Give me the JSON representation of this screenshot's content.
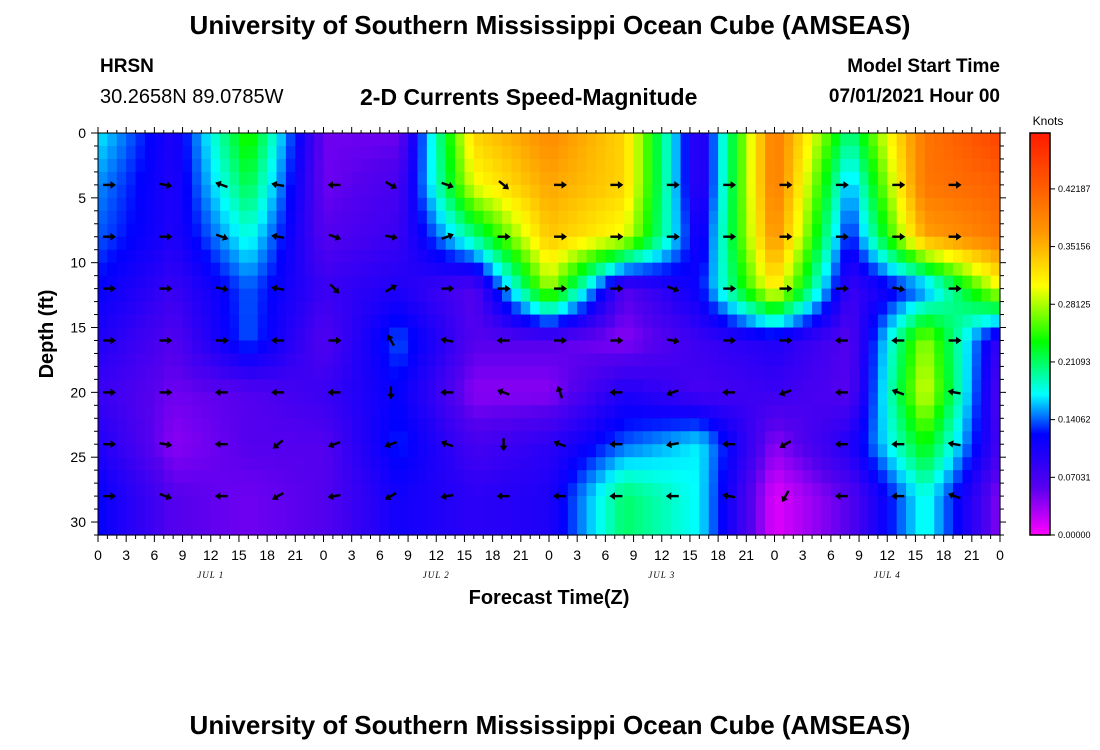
{
  "header": {
    "title": "University of Southern Mississippi Ocean Cube (AMSEAS)",
    "station": "HRSN",
    "coords": "30.2658N  89.0785W",
    "chart_title": "2-D Currents Speed-Magnitude",
    "model_start_label": "Model Start Time",
    "model_start_value": "07/01/2021 Hour 00"
  },
  "footer": {
    "title": "University of Southern Mississippi Ocean Cube (AMSEAS)"
  },
  "chart_data": {
    "type": "heatmap",
    "title": "2-D Currents Speed-Magnitude",
    "xlabel": "Forecast Time(Z)",
    "ylabel": "Depth (ft)",
    "colorbar_label": "Knots",
    "colorbar_ticks": [
      "0.42187",
      "0.35156",
      "0.28125",
      "0.21093",
      "0.14062",
      "0.07031",
      "0.00000"
    ],
    "colorbar_values": [
      0.42187,
      0.35156,
      0.28125,
      0.21093,
      0.14062,
      0.07031,
      0.0
    ],
    "vmin": 0.0,
    "vmax": 0.49,
    "x_tick_labels": [
      "0",
      "3",
      "6",
      "9",
      "12",
      "15",
      "18",
      "21",
      "0",
      "3",
      "6",
      "9",
      "12",
      "15",
      "18",
      "21",
      "0",
      "3",
      "6",
      "9",
      "12",
      "15",
      "18",
      "21",
      "0",
      "3",
      "6",
      "9",
      "12",
      "15",
      "18",
      "21",
      "0"
    ],
    "day_labels": [
      "JUL 1",
      "JUL 2",
      "JUL 3",
      "JUL 4"
    ],
    "y_ticks": [
      0,
      5,
      10,
      15,
      20,
      25,
      30
    ],
    "ylim": [
      0,
      31
    ],
    "x_range_hours": [
      0,
      96
    ],
    "depths_ft": [
      0,
      4,
      8,
      12,
      16,
      20,
      24,
      28
    ],
    "hours": [
      0,
      8,
      16,
      24,
      32,
      40,
      48,
      56,
      64,
      72,
      80,
      88,
      96
    ],
    "speed_knots": [
      [
        0.17,
        0.1,
        0.25,
        0.05,
        0.05,
        0.33,
        0.38,
        0.33,
        0.08,
        0.4,
        0.2,
        0.4,
        0.45
      ],
      [
        0.15,
        0.1,
        0.22,
        0.05,
        0.07,
        0.3,
        0.36,
        0.33,
        0.08,
        0.4,
        0.15,
        0.4,
        0.42
      ],
      [
        0.14,
        0.1,
        0.18,
        0.06,
        0.08,
        0.2,
        0.34,
        0.3,
        0.1,
        0.38,
        0.12,
        0.36,
        0.4
      ],
      [
        0.12,
        0.08,
        0.14,
        0.08,
        0.1,
        0.06,
        0.28,
        0.06,
        0.12,
        0.32,
        0.08,
        0.14,
        0.3
      ],
      [
        0.1,
        0.06,
        0.14,
        0.06,
        0.14,
        0.06,
        0.06,
        0.04,
        0.08,
        0.1,
        0.06,
        0.28,
        0.08
      ],
      [
        0.08,
        0.05,
        0.06,
        0.08,
        0.12,
        0.04,
        0.04,
        0.1,
        0.07,
        0.08,
        0.06,
        0.3,
        0.06
      ],
      [
        0.1,
        0.04,
        0.06,
        0.06,
        0.13,
        0.07,
        0.09,
        0.14,
        0.17,
        0.04,
        0.1,
        0.24,
        0.07
      ],
      [
        0.12,
        0.06,
        0.05,
        0.06,
        0.11,
        0.09,
        0.1,
        0.21,
        0.17,
        0.01,
        0.06,
        0.18,
        0.04
      ]
    ],
    "vector_depths_ft": [
      4,
      8,
      12,
      16,
      20,
      24,
      28
    ],
    "vector_hours": [
      0,
      6,
      12,
      18,
      24,
      30,
      36,
      42,
      48,
      54,
      60,
      66,
      72,
      78,
      84,
      90
    ],
    "direction_deg": [
      [
        0,
        10,
        200,
        190,
        180,
        30,
        20,
        40,
        0,
        0,
        0,
        0,
        0,
        0,
        0,
        0
      ],
      [
        0,
        0,
        20,
        190,
        20,
        10,
        340,
        0,
        0,
        0,
        0,
        0,
        0,
        0,
        0,
        0
      ],
      [
        0,
        0,
        10,
        190,
        45,
        330,
        0,
        0,
        0,
        0,
        20,
        0,
        0,
        0,
        10,
        0
      ],
      [
        0,
        0,
        0,
        180,
        0,
        240,
        190,
        180,
        0,
        0,
        10,
        0,
        0,
        180,
        180,
        0
      ],
      [
        0,
        0,
        180,
        180,
        180,
        90,
        180,
        200,
        250,
        180,
        160,
        180,
        160,
        180,
        200,
        190
      ],
      [
        0,
        10,
        180,
        140,
        160,
        160,
        200,
        90,
        200,
        180,
        170,
        180,
        150,
        180,
        180,
        190
      ],
      [
        0,
        20,
        180,
        150,
        170,
        150,
        170,
        180,
        180,
        180,
        180,
        190,
        120,
        180,
        180,
        200
      ]
    ]
  }
}
